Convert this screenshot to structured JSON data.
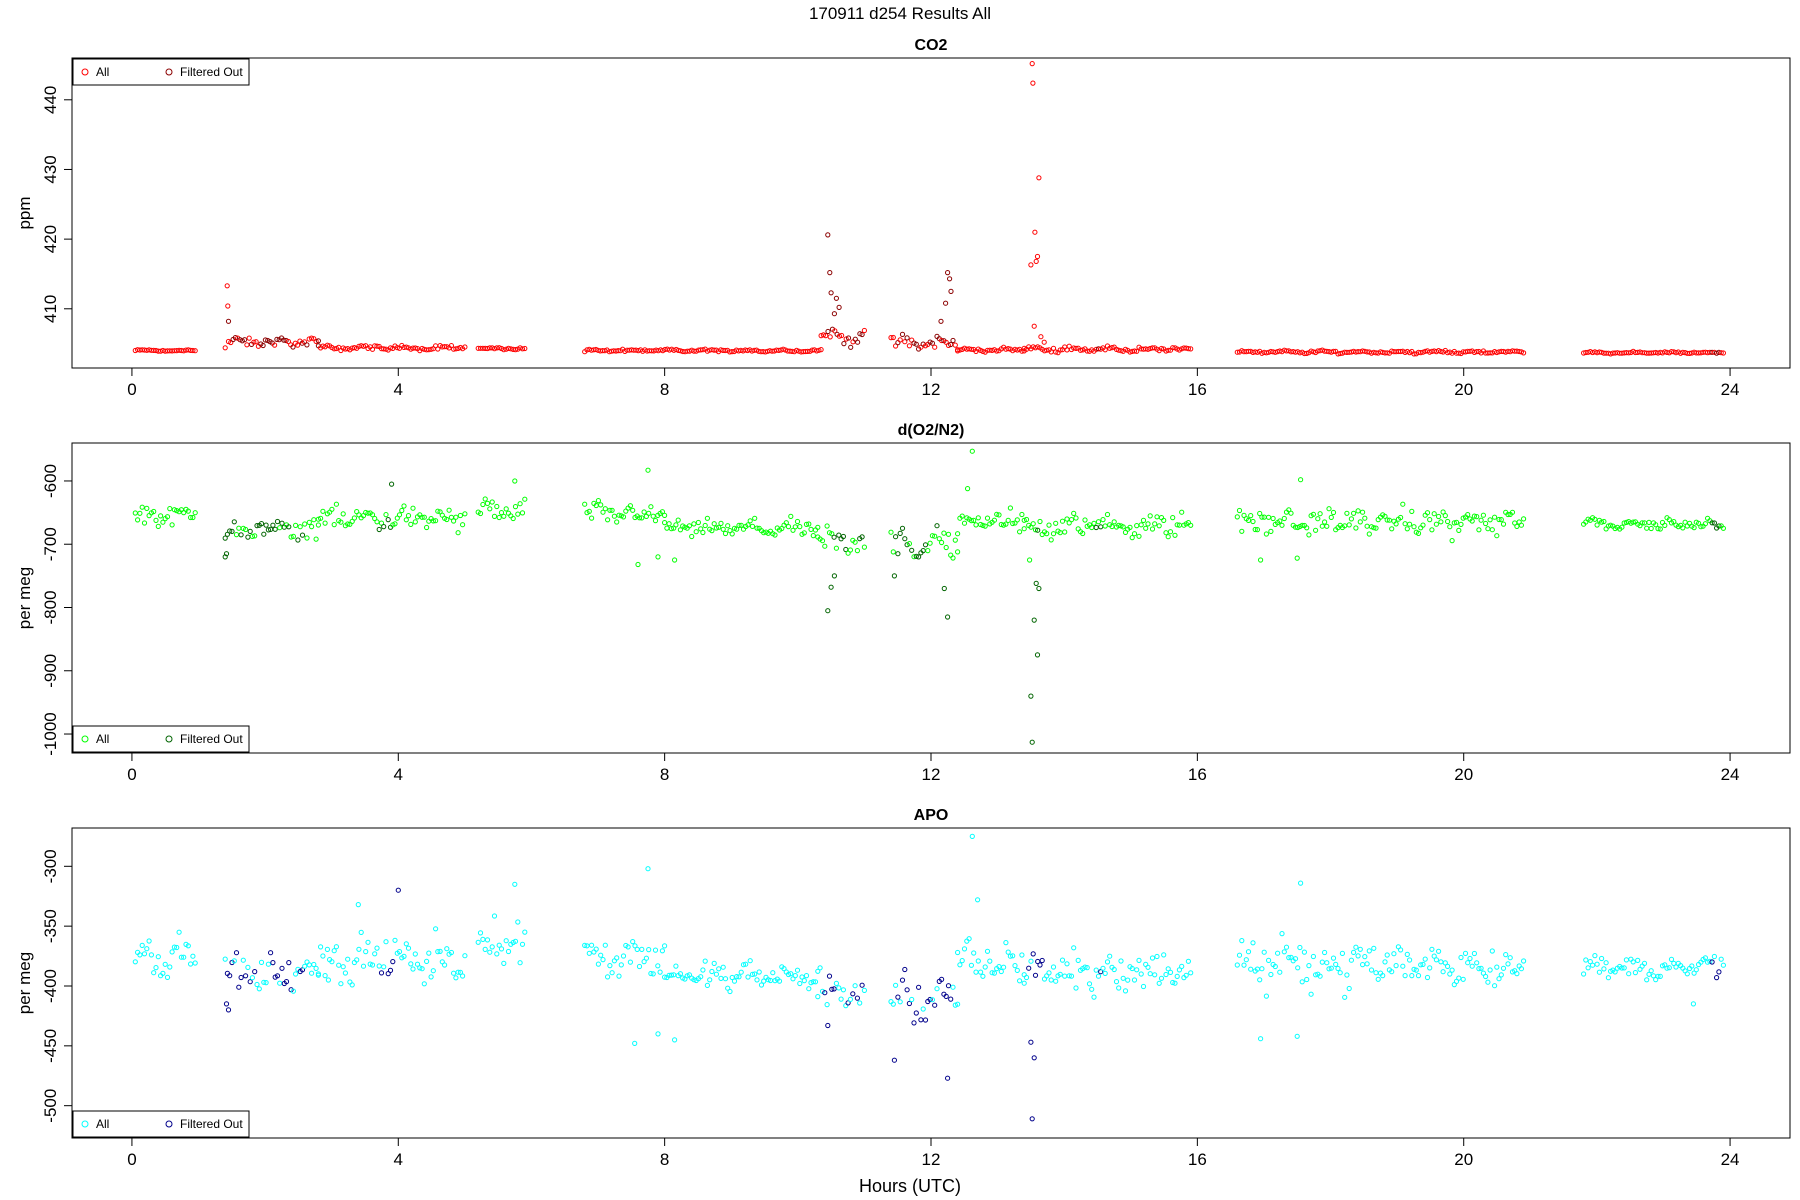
{
  "title": "170911   d254   Results All",
  "xlabel": "Hours (UTC)",
  "x_ticks": [
    "0",
    "4",
    "8",
    "12",
    "16",
    "20",
    "24"
  ],
  "chart_data": [
    {
      "type": "scatter",
      "title": "CO2",
      "ylabel": "ppm",
      "xlim": [
        -0.9,
        24.9
      ],
      "ylim": [
        401.5,
        446
      ],
      "y_ticks": [
        "410",
        "420",
        "430",
        "440"
      ],
      "legend_position": "top-left",
      "series": [
        {
          "name": "All",
          "color": "#ff0000"
        },
        {
          "name": "Filtered Out",
          "color": "#8b0000"
        }
      ],
      "segments": [
        {
          "x": [
            0.05,
            0.95
          ],
          "y": 404.0,
          "spread": 0.15,
          "noise": 0.1
        },
        {
          "x": [
            1.45,
            2.8
          ],
          "y": 405.2,
          "spread": 0.5,
          "noise": 0.5
        },
        {
          "x": [
            2.8,
            5.0
          ],
          "y": 404.4,
          "spread": 0.35,
          "noise": 0.25
        },
        {
          "x": [
            5.2,
            5.9
          ],
          "y": 404.3,
          "spread": 0.2,
          "noise": 0.15
        },
        {
          "x": [
            6.8,
            10.35
          ],
          "y": 404.0,
          "spread": 0.2,
          "noise": 0.15
        },
        {
          "x": [
            10.35,
            11.0
          ],
          "y": 406.0,
          "spread": 1.2,
          "noise": 0.8
        },
        {
          "x": [
            11.4,
            12.4
          ],
          "y": 405.0,
          "spread": 0.8,
          "noise": 0.8
        },
        {
          "x": [
            12.4,
            13.4
          ],
          "y": 404.1,
          "spread": 0.2,
          "noise": 0.2
        },
        {
          "x": [
            13.4,
            15.9
          ],
          "y": 404.2,
          "spread": 0.4,
          "noise": 0.25
        },
        {
          "x": [
            16.6,
            20.9
          ],
          "y": 403.8,
          "spread": 0.2,
          "noise": 0.15
        },
        {
          "x": [
            21.8,
            23.9
          ],
          "y": 403.7,
          "spread": 0.15,
          "noise": 0.1
        }
      ],
      "outliers": [
        {
          "x": 1.43,
          "y": 413.3
        },
        {
          "x": 1.44,
          "y": 410.4
        },
        {
          "x": 1.45,
          "y": 408.2
        },
        {
          "x": 1.4,
          "y": 404.4
        },
        {
          "x": 10.45,
          "y": 420.6
        },
        {
          "x": 10.48,
          "y": 415.2
        },
        {
          "x": 10.5,
          "y": 412.3
        },
        {
          "x": 10.55,
          "y": 409.3
        },
        {
          "x": 10.58,
          "y": 411.5
        },
        {
          "x": 10.62,
          "y": 410.2
        },
        {
          "x": 12.25,
          "y": 415.2
        },
        {
          "x": 12.28,
          "y": 414.3
        },
        {
          "x": 12.3,
          "y": 412.5
        },
        {
          "x": 12.22,
          "y": 410.8
        },
        {
          "x": 12.15,
          "y": 408.2
        },
        {
          "x": 13.52,
          "y": 445.2
        },
        {
          "x": 13.53,
          "y": 442.4
        },
        {
          "x": 13.62,
          "y": 428.8
        },
        {
          "x": 13.56,
          "y": 421.0
        },
        {
          "x": 13.6,
          "y": 417.5
        },
        {
          "x": 13.5,
          "y": 416.3
        },
        {
          "x": 13.58,
          "y": 416.8
        },
        {
          "x": 13.55,
          "y": 407.5
        },
        {
          "x": 13.65,
          "y": 406.0
        },
        {
          "x": 13.7,
          "y": 405.2
        }
      ],
      "filtered_ranges": [
        [
          1.45,
          2.8
        ],
        [
          10.45,
          11.0
        ],
        [
          11.5,
          12.35
        ],
        [
          14.45,
          14.55
        ],
        [
          23.7,
          23.85
        ]
      ]
    },
    {
      "type": "scatter",
      "title": "d(O2/N2)",
      "ylabel": "per meg",
      "xlim": [
        -0.9,
        24.9
      ],
      "ylim": [
        -1030,
        -540
      ],
      "y_ticks": [
        "-1000",
        "-900",
        "-800",
        "-700",
        "-600"
      ],
      "legend_position": "bottom-left",
      "series": [
        {
          "name": "All",
          "color": "#00ff00"
        },
        {
          "name": "Filtered Out",
          "color": "#006400"
        }
      ],
      "segments": [
        {
          "x": [
            0.05,
            0.95
          ],
          "y": -655,
          "spread": 10,
          "noise": 12
        },
        {
          "x": [
            1.4,
            2.8
          ],
          "y": -678,
          "spread": 15,
          "noise": 14
        },
        {
          "x": [
            2.8,
            5.0
          ],
          "y": -660,
          "spread": 15,
          "noise": 15
        },
        {
          "x": [
            5.2,
            5.9
          ],
          "y": -648,
          "spread": 15,
          "noise": 15
        },
        {
          "x": [
            6.8,
            8.0
          ],
          "y": -652,
          "spread": 12,
          "noise": 14
        },
        {
          "x": [
            8.0,
            10.3
          ],
          "y": -675,
          "spread": 10,
          "noise": 10
        },
        {
          "x": [
            10.3,
            11.0
          ],
          "y": -698,
          "spread": 20,
          "noise": 20
        },
        {
          "x": [
            11.4,
            12.4
          ],
          "y": -698,
          "spread": 25,
          "noise": 22
        },
        {
          "x": [
            12.4,
            13.4
          ],
          "y": -665,
          "spread": 15,
          "noise": 15
        },
        {
          "x": [
            13.4,
            15.9
          ],
          "y": -670,
          "spread": 12,
          "noise": 14
        },
        {
          "x": [
            16.6,
            20.9
          ],
          "y": -665,
          "spread": 12,
          "noise": 16
        },
        {
          "x": [
            21.8,
            23.9
          ],
          "y": -668,
          "spread": 8,
          "noise": 8
        }
      ],
      "outliers": [
        {
          "x": 1.4,
          "y": -720
        },
        {
          "x": 1.42,
          "y": -715
        },
        {
          "x": 3.9,
          "y": -605
        },
        {
          "x": 5.75,
          "y": -600
        },
        {
          "x": 7.75,
          "y": -583
        },
        {
          "x": 7.6,
          "y": -732
        },
        {
          "x": 7.9,
          "y": -720
        },
        {
          "x": 8.15,
          "y": -725
        },
        {
          "x": 10.45,
          "y": -805
        },
        {
          "x": 10.5,
          "y": -768
        },
        {
          "x": 10.55,
          "y": -750
        },
        {
          "x": 11.45,
          "y": -750
        },
        {
          "x": 12.25,
          "y": -815
        },
        {
          "x": 12.2,
          "y": -770
        },
        {
          "x": 12.62,
          "y": -553
        },
        {
          "x": 12.55,
          "y": -612
        },
        {
          "x": 13.52,
          "y": -1013
        },
        {
          "x": 13.5,
          "y": -940
        },
        {
          "x": 13.6,
          "y": -875
        },
        {
          "x": 13.55,
          "y": -820
        },
        {
          "x": 13.62,
          "y": -770
        },
        {
          "x": 13.58,
          "y": -762
        },
        {
          "x": 13.48,
          "y": -725
        },
        {
          "x": 17.55,
          "y": -598
        },
        {
          "x": 17.5,
          "y": -722
        },
        {
          "x": 16.95,
          "y": -725
        }
      ],
      "filtered_ranges": [
        [
          1.4,
          2.6
        ],
        [
          3.7,
          3.9
        ],
        [
          10.4,
          11.0
        ],
        [
          11.45,
          12.3
        ],
        [
          13.5,
          13.7
        ],
        [
          14.45,
          14.55
        ],
        [
          23.7,
          23.85
        ]
      ]
    },
    {
      "type": "scatter",
      "title": "APO",
      "ylabel": "per meg",
      "xlim": [
        -0.9,
        24.9
      ],
      "ylim": [
        -527,
        -268
      ],
      "y_ticks": [
        "-500",
        "-450",
        "-400",
        "-350",
        "-300"
      ],
      "legend_position": "bottom-left",
      "series": [
        {
          "name": "All",
          "color": "#00ffff"
        },
        {
          "name": "Filtered Out",
          "color": "#00008b"
        }
      ],
      "segments": [
        {
          "x": [
            0.05,
            0.95
          ],
          "y": -375,
          "spread": 10,
          "noise": 12
        },
        {
          "x": [
            1.4,
            2.8
          ],
          "y": -390,
          "spread": 10,
          "noise": 12
        },
        {
          "x": [
            2.8,
            5.0
          ],
          "y": -378,
          "spread": 15,
          "noise": 15
        },
        {
          "x": [
            5.2,
            5.9
          ],
          "y": -362,
          "spread": 15,
          "noise": 15
        },
        {
          "x": [
            6.8,
            8.0
          ],
          "y": -375,
          "spread": 12,
          "noise": 14
        },
        {
          "x": [
            8.0,
            10.3
          ],
          "y": -392,
          "spread": 10,
          "noise": 9
        },
        {
          "x": [
            10.3,
            11.0
          ],
          "y": -405,
          "spread": 15,
          "noise": 15
        },
        {
          "x": [
            11.4,
            12.4
          ],
          "y": -412,
          "spread": 15,
          "noise": 14
        },
        {
          "x": [
            12.4,
            13.4
          ],
          "y": -382,
          "spread": 12,
          "noise": 14
        },
        {
          "x": [
            13.4,
            15.9
          ],
          "y": -388,
          "spread": 12,
          "noise": 14
        },
        {
          "x": [
            16.6,
            20.9
          ],
          "y": -382,
          "spread": 12,
          "noise": 15
        },
        {
          "x": [
            21.8,
            23.9
          ],
          "y": -385,
          "spread": 8,
          "noise": 7
        }
      ],
      "outliers": [
        {
          "x": 1.45,
          "y": -420
        },
        {
          "x": 1.42,
          "y": -415
        },
        {
          "x": 2.95,
          "y": -395
        },
        {
          "x": 3.4,
          "y": -332
        },
        {
          "x": 4.0,
          "y": -320
        },
        {
          "x": 5.75,
          "y": -315
        },
        {
          "x": 7.75,
          "y": -302
        },
        {
          "x": 7.55,
          "y": -448
        },
        {
          "x": 7.9,
          "y": -440
        },
        {
          "x": 8.15,
          "y": -445
        },
        {
          "x": 10.45,
          "y": -433
        },
        {
          "x": 11.45,
          "y": -462
        },
        {
          "x": 12.25,
          "y": -477
        },
        {
          "x": 12.62,
          "y": -275
        },
        {
          "x": 12.7,
          "y": -328
        },
        {
          "x": 13.52,
          "y": -511
        },
        {
          "x": 13.55,
          "y": -460
        },
        {
          "x": 13.5,
          "y": -447
        },
        {
          "x": 17.55,
          "y": -314
        },
        {
          "x": 17.5,
          "y": -442
        },
        {
          "x": 16.95,
          "y": -444
        },
        {
          "x": 23.45,
          "y": -415
        }
      ],
      "filtered_ranges": [
        [
          1.4,
          2.6
        ],
        [
          3.7,
          4.0
        ],
        [
          10.4,
          11.0
        ],
        [
          11.45,
          12.35
        ],
        [
          13.45,
          13.7
        ],
        [
          14.45,
          14.55
        ],
        [
          23.7,
          23.85
        ]
      ]
    }
  ]
}
